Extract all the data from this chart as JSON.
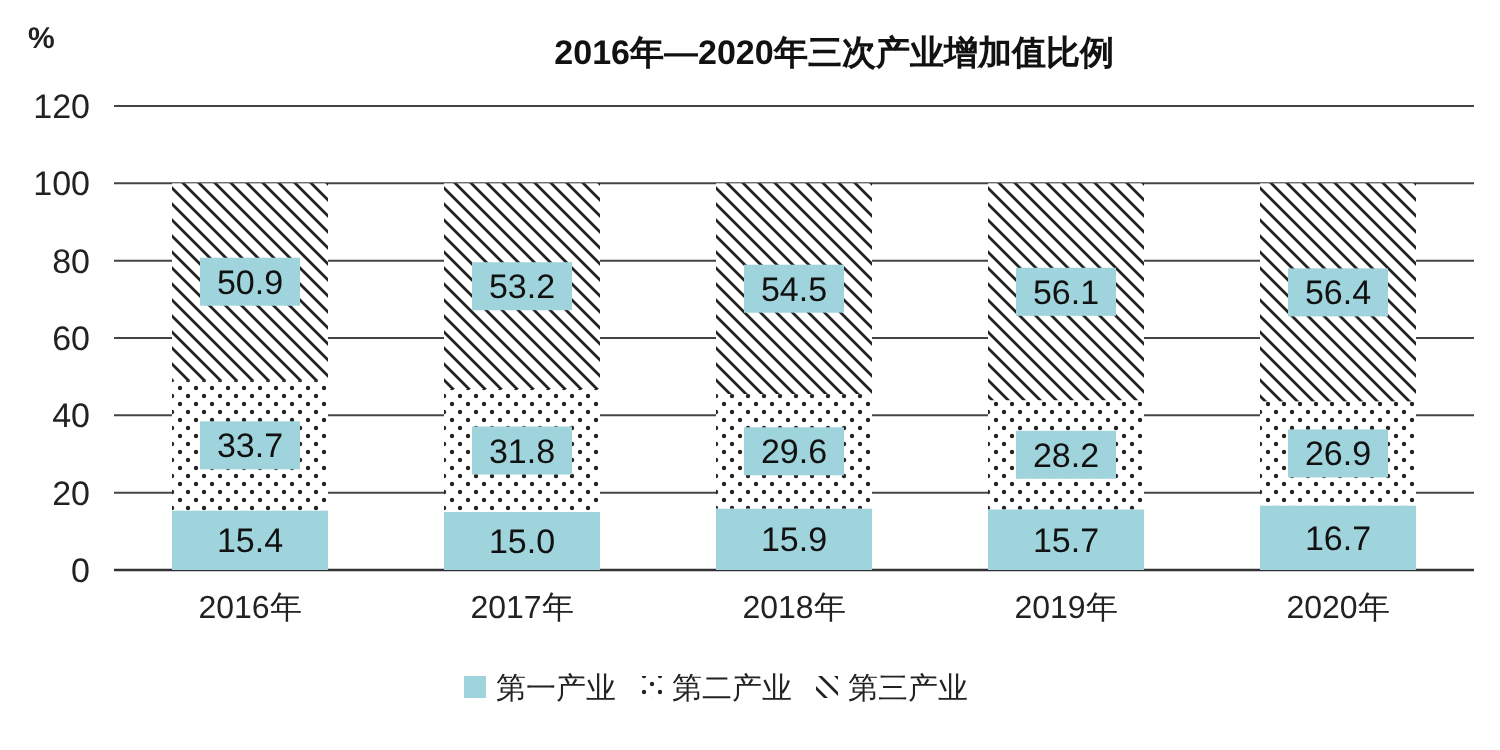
{
  "chart_data": {
    "type": "bar",
    "title": "2016年—2020年三次产业增加值比例",
    "ylabel": "%",
    "categories": [
      "2016年",
      "2017年",
      "2018年",
      "2019年",
      "2020年"
    ],
    "stacked": true,
    "series": [
      {
        "name": "第一产业",
        "color": "#9fd4dc",
        "values": [
          15.4,
          15.0,
          15.9,
          15.7,
          16.7
        ],
        "value_labels": [
          "15.4",
          "15.0",
          "15.9",
          "15.7",
          "16.7"
        ]
      },
      {
        "name": "第二产业",
        "color": "#222222",
        "values": [
          33.7,
          31.8,
          29.6,
          28.2,
          26.9
        ],
        "value_labels": [
          "33.7",
          "31.8",
          "29.6",
          "28.2",
          "26.9"
        ]
      },
      {
        "name": "第三产业",
        "color": "#222222",
        "values": [
          50.9,
          53.2,
          54.5,
          56.1,
          56.4
        ],
        "value_labels": [
          "50.9",
          "53.2",
          "54.5",
          "56.1",
          "56.4"
        ]
      }
    ],
    "ylim": [
      0,
      120
    ],
    "yticks": [
      0,
      20,
      40,
      60,
      80,
      100,
      120
    ],
    "grid": "y",
    "legend": "bottom"
  }
}
